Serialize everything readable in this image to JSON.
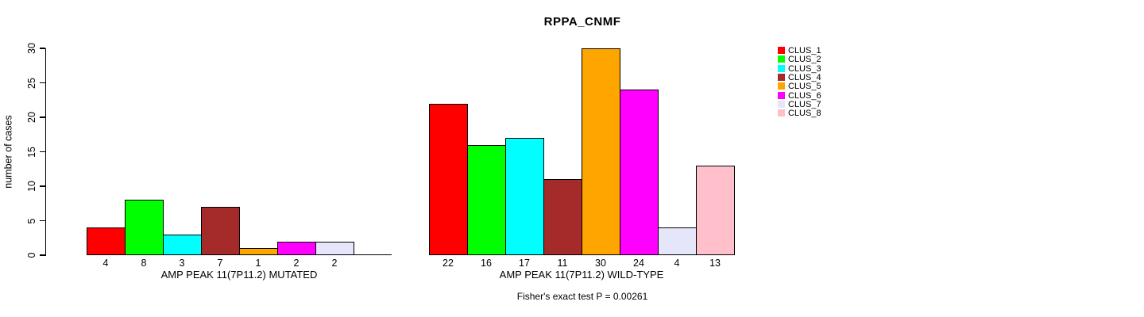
{
  "chart_data": {
    "type": "bar",
    "title": "RPPA_CNMF",
    "ylabel": "number of cases",
    "ylim": [
      0,
      30
    ],
    "yticks": [
      0,
      5,
      10,
      15,
      20,
      25,
      30
    ],
    "grid": false,
    "legend_position": "right-outside",
    "categories": [
      "CLUS_1",
      "CLUS_2",
      "CLUS_3",
      "CLUS_4",
      "CLUS_5",
      "CLUS_6",
      "CLUS_7",
      "CLUS_8"
    ],
    "colors": [
      "#FF0000",
      "#00FF00",
      "#00FFFF",
      "#A52A2A",
      "#FFA500",
      "#FF00FF",
      "#E6E6FA",
      "#FFC0CB"
    ],
    "series": [
      {
        "name": "AMP PEAK 11(7P11.2) MUTATED",
        "values": [
          4,
          8,
          3,
          7,
          1,
          2,
          2,
          0
        ]
      },
      {
        "name": "AMP PEAK 11(7P11.2) WILD-TYPE",
        "values": [
          22,
          16,
          17,
          11,
          30,
          24,
          4,
          13
        ]
      }
    ],
    "bar_value_labels_shown": true,
    "annotation": "Fisher's exact test P = 0.00261"
  }
}
